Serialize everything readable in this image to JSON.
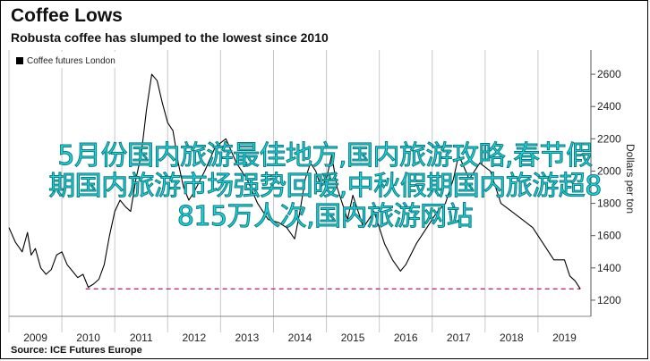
{
  "title": "Coffee Lows",
  "subtitle": "Robusta coffee has slumped to the lowest since 2010",
  "source": "Source: ICE Futures Europe",
  "overlay": {
    "line1": "5月份国内旅游最佳地方,国内旅游攻略,春节假",
    "line2": "期国内旅游市场强势回暖,中秋假期国内旅游超8",
    "line3": "815万人次,国内旅游网站"
  },
  "colors": {
    "line": "#000000",
    "dashed_reference": "#b0307a",
    "overlay_text": "#1fd8de"
  },
  "chart_data": {
    "type": "line",
    "title": "Coffee Lows",
    "subtitle": "Robusta coffee has slumped to the lowest since 2010",
    "xlabel": "",
    "ylabel": "Dollars per ton",
    "legend": "top-left",
    "grid": "vertical",
    "xlim": [
      2008.5,
      2019.5
    ],
    "ylim": [
      1100,
      2750
    ],
    "y_ticks": [
      1200,
      1400,
      1600,
      1800,
      2000,
      2200,
      2400,
      2600
    ],
    "x_ticks": [
      "2009",
      "2010",
      "2011",
      "2012",
      "2013",
      "2014",
      "2015",
      "2016",
      "2017",
      "2018",
      "2019"
    ],
    "series": [
      {
        "name": "Coffee futures London",
        "x": [
          2008.5,
          2008.62,
          2008.75,
          2008.85,
          2008.92,
          2009.0,
          2009.1,
          2009.2,
          2009.3,
          2009.4,
          2009.5,
          2009.6,
          2009.7,
          2009.8,
          2009.9,
          2010.0,
          2010.1,
          2010.2,
          2010.3,
          2010.4,
          2010.5,
          2010.6,
          2010.7,
          2010.8,
          2010.9,
          2011.0,
          2011.1,
          2011.2,
          2011.3,
          2011.4,
          2011.5,
          2011.6,
          2011.7,
          2011.8,
          2011.9,
          2012.0,
          2012.2,
          2012.4,
          2012.6,
          2012.8,
          2013.0,
          2013.2,
          2013.4,
          2013.6,
          2013.75,
          2013.9,
          2014.0,
          2014.1,
          2014.2,
          2014.3,
          2014.4,
          2014.5,
          2014.6,
          2014.7,
          2014.8,
          2014.9,
          2015.0,
          2015.2,
          2015.4,
          2015.6,
          2015.75,
          2015.9,
          2016.0,
          2016.2,
          2016.4,
          2016.6,
          2016.75,
          2016.9,
          2017.0,
          2017.2,
          2017.4,
          2017.6,
          2017.8,
          2018.0,
          2018.2,
          2018.4,
          2018.6,
          2018.8,
          2019.0,
          2019.1,
          2019.2,
          2019.3
        ],
        "values": [
          1650,
          1560,
          1500,
          1620,
          1480,
          1520,
          1400,
          1360,
          1390,
          1480,
          1500,
          1420,
          1380,
          1340,
          1360,
          1280,
          1300,
          1330,
          1420,
          1600,
          1750,
          1820,
          1780,
          1750,
          1950,
          2100,
          2380,
          2600,
          2560,
          2420,
          2300,
          2250,
          2050,
          1900,
          1820,
          1870,
          2000,
          2150,
          2200,
          2050,
          1950,
          1800,
          1700,
          1680,
          1650,
          1580,
          1750,
          1950,
          2050,
          2000,
          1900,
          1950,
          2100,
          1900,
          1800,
          1700,
          1850,
          1650,
          1750,
          1550,
          1450,
          1380,
          1420,
          1550,
          1650,
          1750,
          1800,
          1950,
          2100,
          1950,
          2050,
          2000,
          1800,
          1750,
          1700,
          1650,
          1550,
          1450,
          1450,
          1350,
          1320,
          1270
        ]
      }
    ],
    "reference_line": {
      "value": 1270,
      "from": 2009.95,
      "to": 2019.3,
      "style": "dashed"
    }
  }
}
